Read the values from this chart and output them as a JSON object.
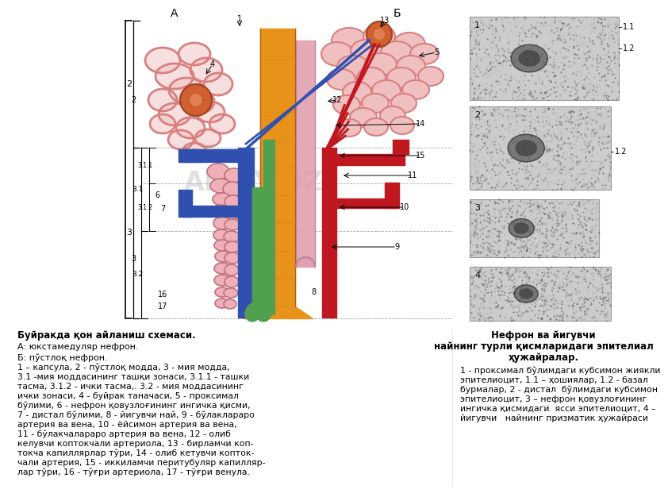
{
  "title_left": "Буйракда қон айланиш схемаси.",
  "subtitle_A": "А: юкстамедуляр нефрон.",
  "subtitle_B": "Б: пўстлоқ нефрон.",
  "left_text_lines": [
    "1 – капсула, 2 - пўстлоқ модда, 3 - мия модда,",
    "3.1 -мия моддасининг ташқи зонаси, 3.1.1 - ташки",
    "тасма, 3.1.2 - ички тасма,. 3.2 - мия моддасининг",
    "ички зонаси, 4 - буйрак таначаси, 5 - проксимал",
    "бўлими, 6 - нефрон қовузлоғининг ингичка қисми,",
    "7 - дистал бўлими, 8 - йигувчи най, 9 - бўлаклараро",
    "артерия ва вена, 10 - ёйсимон артерия ва вена,",
    "11 - бўлакчалараро артерия ва вена, 12 - олиб",
    "келувчи коптокчали артериола, 13 - бирламчи коп-",
    "токча капиллярлар тўри, 14 - олиб кетувчи копток-",
    "чали артерия, 15 - иккиламчи перитубуляр капилляр-",
    "лар тўри, 16 - тўғри артериола, 17 - тўғри венула."
  ],
  "title_right_line1": "Нефрон ва йигувчи",
  "title_right_line2": "найнинг турли қисмларидаги эпителиал",
  "title_right_line3": "ҳужайралар.",
  "right_text_lines": [
    "1 - проксимал бўлимдаги кубсимон жиякли",
    "эпителиоцит, 1.1 – ҳошиялар, 1.2 - базал",
    "бурмалар, 2 - дистал  бўлимдаги кубсимон",
    "эпителиоцит, 3 – нефрон қовузлоғининг",
    "ингичка қисмидаги  ясси эпителиоцит, 4 –",
    "йигувчи   найнинг призматик ҳужайраси"
  ],
  "label_A": "А",
  "label_B": "Б",
  "bg_color": "#ffffff",
  "pink_arc_color": "#f5b8b8",
  "proximal_tubule_color": "#d88080",
  "glomerulus_color": "#c06040",
  "collecting_duct_color": "#e8921a",
  "pink_tubule_color": "#e0a0b0",
  "blue_vessel_color": "#3050b0",
  "red_vessel_color": "#c01820",
  "green_tubule_color": "#50a050",
  "label_line_color": "#555555",
  "zone_bracket_color": "#000000"
}
